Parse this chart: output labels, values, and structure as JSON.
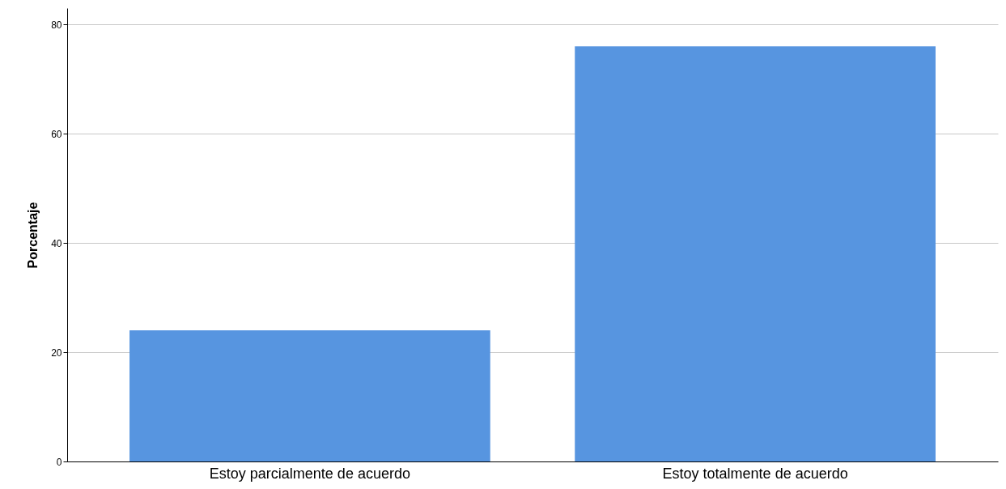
{
  "chart_data": {
    "type": "bar",
    "ylabel": "Porcentaje",
    "categories": [
      "Estoy parcialmente de acuerdo",
      "Estoy totalmente de acuerdo"
    ],
    "values": [
      24,
      76
    ],
    "color": "#5795e0",
    "ylim": [
      0,
      83
    ],
    "yticks": [
      0,
      20,
      40,
      60,
      80
    ],
    "grid": "y"
  }
}
